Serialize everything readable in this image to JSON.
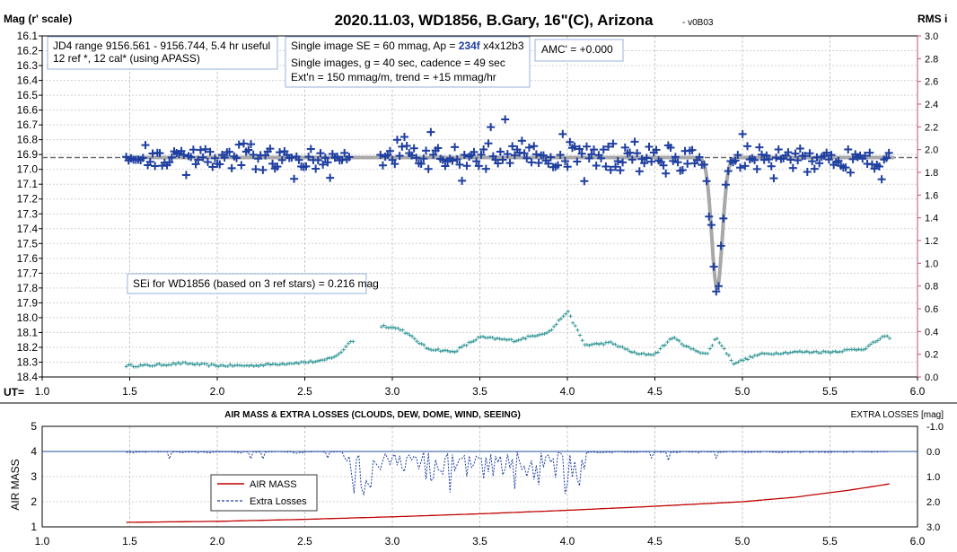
{
  "chart_data": [
    {
      "type": "scatter",
      "title": "2020.11.03, WD1856, B.Gary, 16\"(C), Arizona",
      "version_label": "- v0B03",
      "ylabel": "Mag (r' scale)",
      "y2label": "RMS i",
      "xlabel_prefix": "UT=",
      "xlim": [
        1.0,
        6.0
      ],
      "ylim": [
        16.1,
        18.4
      ],
      "y2lim": [
        0.0,
        3.0
      ],
      "x_ticks": [
        "1.0",
        "1.5",
        "2.0",
        "2.5",
        "3.0",
        "3.5",
        "4.0",
        "4.5",
        "5.0",
        "5.5",
        "6.0"
      ],
      "y_ticks": [
        "16.1",
        "16.2",
        "16.3",
        "16.4",
        "16.5",
        "16.6",
        "16.7",
        "16.8",
        "16.9",
        "17.0",
        "17.1",
        "17.2",
        "17.3",
        "17.4",
        "17.5",
        "17.6",
        "17.7",
        "17.8",
        "17.9",
        "18.0",
        "18.1",
        "18.2",
        "18.3",
        "18.4"
      ],
      "y2_ticks": [
        "0.0",
        "0.2",
        "0.4",
        "0.6",
        "0.8",
        "1.0",
        "1.2",
        "1.4",
        "1.6",
        "1.8",
        "2.0",
        "2.2",
        "2.4",
        "2.6",
        "2.8",
        "3.0"
      ],
      "grid": true,
      "info_boxes": {
        "box1": [
          "JD4 range 9156.561 - 9156.744, 5.4 hr useful",
          " 12 ref *, 12 cal* (using APASS)"
        ],
        "box2_line1_prefix": "Single image SE = 60 mmag, Ap = ",
        "box2_line1_ap": "234f",
        "box2_line1_suffix": " x4x12b3",
        "box2_line2": "Single images, g = 40 sec, cadence = 49 sec",
        "box2_line3": "Ext'n = 150 mmag/m, trend = +15 mmag/hr",
        "box3": "AMC' = +0.000",
        "box4": "SEi for WD1856 (based on 3 ref stars) = 0.216 mag"
      },
      "model": {
        "baseline_mag": 16.92,
        "transit_center_ut": 4.855,
        "transit_depth_mag": 0.88,
        "transit_half_width_hr": 0.045
      },
      "rms_series_description_values": {
        "x": [
          1.48,
          1.6,
          1.8,
          2.0,
          2.2,
          2.4,
          2.6,
          2.7,
          2.75,
          2.95,
          3.05,
          3.2,
          3.35,
          3.5,
          3.7,
          3.9,
          4.0,
          4.1,
          4.25,
          4.4,
          4.5,
          4.6,
          4.7,
          4.8,
          4.85,
          4.95,
          5.1,
          5.3,
          5.5,
          5.7,
          5.8
        ],
        "y": [
          0.1,
          0.1,
          0.12,
          0.1,
          0.1,
          0.12,
          0.14,
          0.2,
          0.3,
          0.45,
          0.42,
          0.25,
          0.22,
          0.35,
          0.32,
          0.4,
          0.58,
          0.28,
          0.3,
          0.2,
          0.2,
          0.35,
          0.25,
          0.2,
          0.35,
          0.12,
          0.2,
          0.22,
          0.22,
          0.25,
          0.35
        ]
      },
      "colors": {
        "points": "#1f3fa0",
        "model": "#a8a8a8",
        "rms": "#3a9a9a",
        "baseline": "#707070"
      }
    },
    {
      "type": "line",
      "title": "AIR MASS & EXTRA LOSSES (CLOUDS, DEW, DOME, WIND, SEEING)",
      "ylabel": "AIR MASS",
      "y2label": "EXTRA LOSSES [mag]",
      "xlim": [
        1.0,
        6.0
      ],
      "ylim": [
        1,
        5
      ],
      "y2lim": [
        3.0,
        -1.0
      ],
      "x_ticks": [
        "1.0",
        "1.5",
        "2.0",
        "2.5",
        "3.0",
        "3.5",
        "4.0",
        "4.5",
        "5.0",
        "5.5",
        "6.0"
      ],
      "y_ticks": [
        "1",
        "2",
        "3",
        "4",
        "5"
      ],
      "y2_ticks": [
        "-1.0",
        "0.0",
        "1.0",
        "2.0",
        "3.0"
      ],
      "legend": [
        "AIR MASS",
        "Extra Losses"
      ],
      "series": [
        {
          "name": "AIR MASS",
          "x": [
            1.48,
            2.0,
            2.5,
            3.0,
            3.5,
            4.0,
            4.5,
            5.0,
            5.3,
            5.6,
            5.85
          ],
          "y": [
            1.18,
            1.22,
            1.3,
            1.4,
            1.52,
            1.66,
            1.82,
            2.0,
            2.18,
            2.45,
            2.72
          ]
        },
        {
          "name": "Extra Losses",
          "x": [
            1.48,
            1.9,
            2.1,
            2.5,
            2.7,
            2.8,
            2.85,
            2.9,
            3.1,
            3.3,
            3.5,
            3.7,
            3.9,
            4.0,
            4.2,
            4.6,
            5.0,
            5.5,
            5.85
          ],
          "y": [
            0.0,
            0.1,
            0.0,
            0.02,
            0.2,
            1.0,
            1.9,
            0.6,
            0.4,
            0.6,
            0.8,
            0.5,
            0.6,
            0.8,
            0.1,
            0.1,
            0.02,
            0.0,
            0.05
          ]
        }
      ],
      "colors": {
        "airmass": "#c00000",
        "losses": "#1f3fa0"
      }
    }
  ]
}
